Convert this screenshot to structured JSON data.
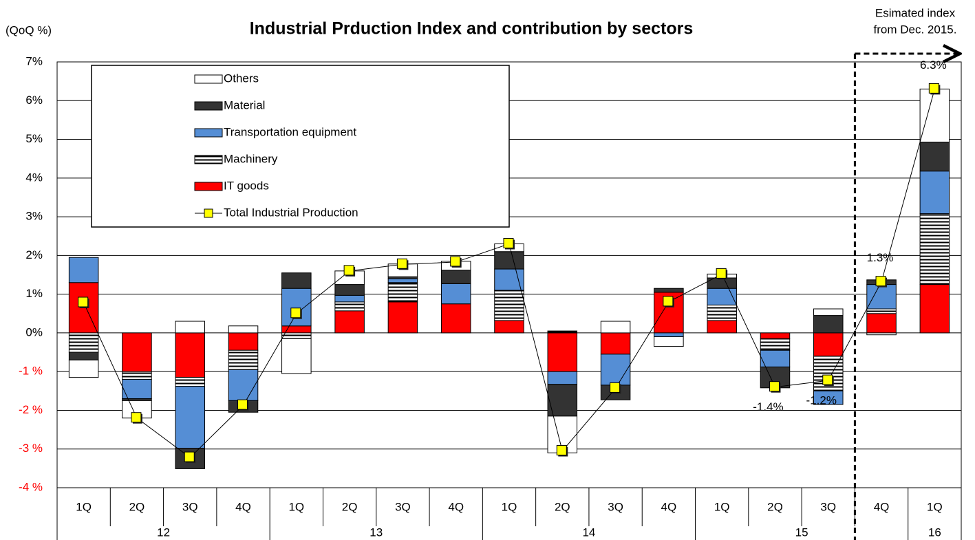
{
  "chart_data": {
    "type": "stacked-bar-line",
    "title": "Industrial Prduction Index and contribution by sectors",
    "y_axis_label": "(QoQ %)",
    "annotation": [
      "Esimated index",
      "from Dec. 2015."
    ],
    "categories": [
      "1Q",
      "2Q",
      "3Q",
      "4Q",
      "1Q",
      "2Q",
      "3Q",
      "4Q",
      "1Q",
      "2Q",
      "3Q",
      "4Q",
      "1Q",
      "2Q",
      "3Q",
      "4Q",
      "1Q"
    ],
    "category_years": [
      "12",
      "12",
      "12",
      "12",
      "13",
      "13",
      "13",
      "13",
      "14",
      "14",
      "14",
      "14",
      "15",
      "15",
      "15",
      "15",
      "16"
    ],
    "ylim": [
      -4,
      7
    ],
    "yticks": [
      {
        "value": -4,
        "label": "-4 %"
      },
      {
        "value": -3,
        "label": "-3 %"
      },
      {
        "value": -2,
        "label": "-2 %"
      },
      {
        "value": -1,
        "label": "-1 %"
      },
      {
        "value": 0,
        "label": "0%"
      },
      {
        "value": 1,
        "label": "1%"
      },
      {
        "value": 2,
        "label": "2%"
      },
      {
        "value": 3,
        "label": "3%"
      },
      {
        "value": 4,
        "label": "4%"
      },
      {
        "value": 5,
        "label": "5%"
      },
      {
        "value": 6,
        "label": "6%"
      },
      {
        "value": 7,
        "label": "7%"
      }
    ],
    "negative_tick_color": "#ff0000",
    "grid": true,
    "legend": "top-left",
    "estimate_start_index": 15,
    "series": [
      {
        "name": "IT goods",
        "color": "#ff0000",
        "values": [
          1.3,
          -1.0,
          -1.15,
          -0.45,
          0.18,
          0.57,
          0.8,
          0.75,
          0.32,
          -1.0,
          -0.55,
          1.05,
          0.32,
          -0.15,
          -0.6,
          0.5,
          1.25
        ]
      },
      {
        "name": "Machinery",
        "color": "#ffffff",
        "pattern": "horizontal-stripes",
        "values": [
          -0.5,
          -0.2,
          -0.23,
          -0.5,
          -0.15,
          0.23,
          0.5,
          0,
          0.78,
          0.05,
          0,
          0,
          0.4,
          -0.3,
          -0.9,
          0.12,
          1.83
        ]
      },
      {
        "name": "Transportation equipment",
        "color": "#558ed5",
        "values": [
          0.65,
          -0.5,
          -1.6,
          -0.8,
          0.97,
          0.17,
          0.1,
          0.52,
          0.55,
          -0.33,
          -0.8,
          -0.1,
          0.43,
          -0.43,
          -0.35,
          0.63,
          1.1
        ]
      },
      {
        "name": "Material",
        "color": "#333333",
        "values": [
          -0.2,
          -0.05,
          -0.53,
          -0.3,
          0.4,
          0.28,
          0.05,
          0.35,
          0.45,
          -0.82,
          -0.38,
          0.1,
          0.27,
          -0.54,
          0.45,
          0.12,
          0.75
        ]
      },
      {
        "name": "Others",
        "color": "#ffffff",
        "values": [
          -0.45,
          -0.45,
          0.3,
          0.18,
          -0.9,
          0.35,
          0.33,
          0.23,
          0.2,
          -0.95,
          0.3,
          -0.25,
          0.1,
          0,
          0.17,
          -0.05,
          1.37
        ]
      }
    ],
    "total": {
      "name": "Total Industrial Production",
      "type": "line",
      "color": "#000000",
      "marker_color": "#ffff00",
      "values": [
        0.78,
        -2.2,
        -3.22,
        -1.87,
        0.5,
        1.6,
        1.77,
        1.83,
        2.3,
        -3.05,
        -1.43,
        0.8,
        1.52,
        -1.4,
        -1.23,
        1.32,
        6.3
      ],
      "value_labels": [
        null,
        null,
        null,
        null,
        null,
        null,
        null,
        null,
        null,
        null,
        null,
        null,
        null,
        "-1.4%",
        "-1.2%",
        "1.3%",
        "6.3%"
      ]
    }
  }
}
